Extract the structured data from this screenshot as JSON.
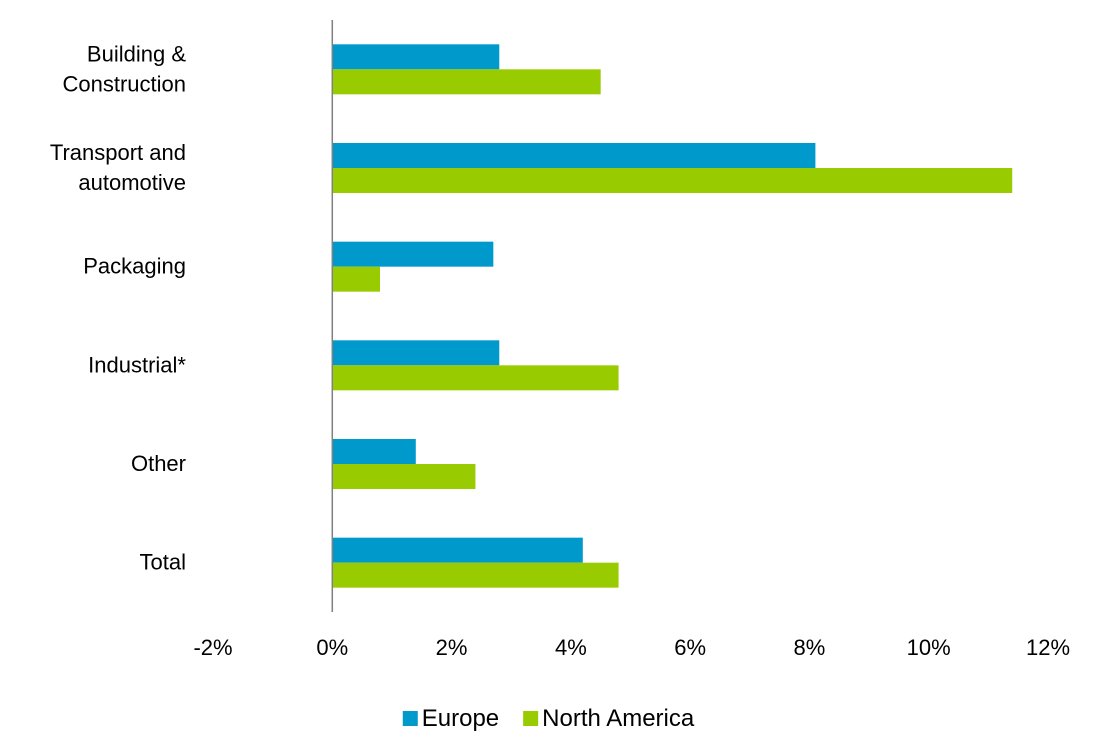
{
  "chart_data": {
    "type": "bar",
    "orientation": "horizontal",
    "categories": [
      [
        "Building &",
        "Construction"
      ],
      [
        "Transport and",
        "automotive"
      ],
      [
        "Packaging"
      ],
      [
        "Industrial*"
      ],
      [
        "Other"
      ],
      [
        "Total"
      ]
    ],
    "series": [
      {
        "name": "Europe",
        "color": "#0099cc",
        "values": [
          2.8,
          8.1,
          2.7,
          2.8,
          1.4,
          4.2
        ]
      },
      {
        "name": "North America",
        "color": "#99cc00",
        "values": [
          4.5,
          11.4,
          0.8,
          4.8,
          2.4,
          4.8
        ]
      }
    ],
    "xlim": [
      -2,
      12
    ],
    "xticks": [
      -2,
      0,
      2,
      4,
      6,
      8,
      10,
      12
    ],
    "tick_format": "percent",
    "zero_line_color": "#808080",
    "legend_position": "bottom-center",
    "grid": false,
    "title": "",
    "xlabel": "",
    "ylabel": ""
  }
}
